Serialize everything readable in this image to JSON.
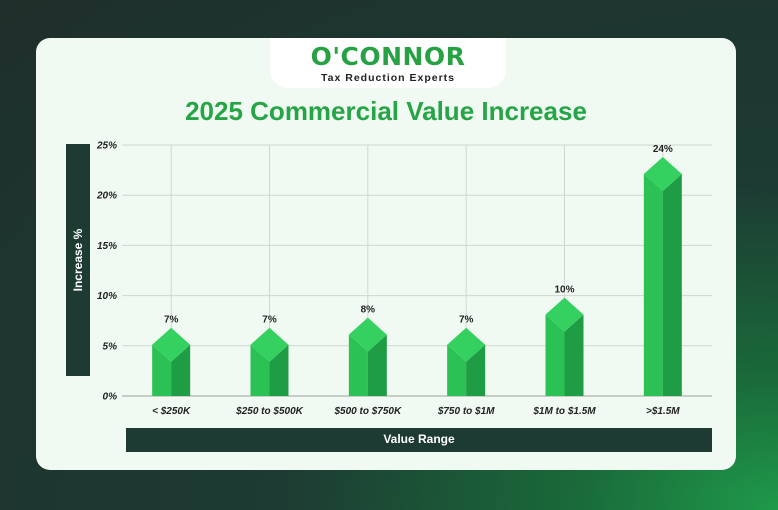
{
  "brand": {
    "name": "O'CONNOR",
    "tagline": "Tax Reduction Experts"
  },
  "chart_data": {
    "type": "bar",
    "title": "2025 Commercial Value Increase",
    "xlabel": "Value Range",
    "ylabel": "Increase %",
    "categories": [
      "< $250K",
      "$250 to $500K",
      "$500 to $750K",
      "$750 to $1M",
      "$1M to $1.5M",
      ">$1.5M"
    ],
    "values": [
      7,
      7,
      8,
      7,
      10,
      24
    ],
    "value_labels": [
      "7%",
      "7%",
      "8%",
      "7%",
      "10%",
      "24%"
    ],
    "yticks": [
      "0%",
      "5%",
      "10%",
      "15%",
      "20%",
      "25%"
    ],
    "ylim": [
      0,
      25
    ],
    "grid": true,
    "colors": {
      "bar_light": "#2cc155",
      "bar_dark": "#1f9d45",
      "bar_top": "#34d160"
    }
  }
}
